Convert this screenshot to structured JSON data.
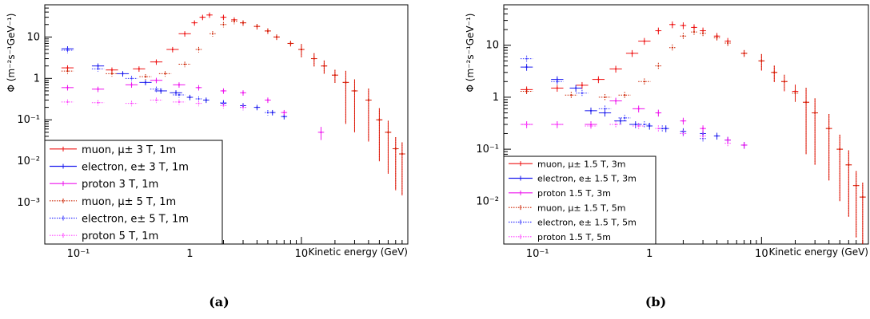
{
  "captions": [
    "(a)",
    "(b)"
  ],
  "chart_data": [
    {
      "type": "scatter",
      "title": "",
      "xlabel": "Kinetic energy (GeV)",
      "ylabel": "Φ (m⁻²s⁻¹GeV⁻¹)",
      "xscale": "log",
      "yscale": "log",
      "xlim": [
        0.05,
        90
      ],
      "ylim": [
        0.0001,
        60
      ],
      "xticks": [
        {
          "v": 0.1,
          "label": "10⁻¹"
        },
        {
          "v": 1,
          "label": "1"
        },
        {
          "v": 10,
          "label": "10"
        }
      ],
      "yticks": [
        {
          "v": 0.001,
          "label": "10⁻³"
        },
        {
          "v": 0.01,
          "label": "10⁻²"
        },
        {
          "v": 0.1,
          "label": "10⁻¹"
        },
        {
          "v": 1,
          "label": "1"
        },
        {
          "v": 10,
          "label": "10"
        }
      ],
      "legend_position": "bottom-left",
      "series": [
        {
          "name": "muon, μ± 3 T, 1m",
          "color": "#ee1111",
          "style": "solid",
          "x": [
            0.08,
            0.2,
            0.35,
            0.5,
            0.7,
            0.9,
            1.1,
            1.3,
            1.5,
            2,
            2.5,
            3,
            4,
            5,
            6,
            8,
            10,
            13,
            16,
            20,
            25,
            30,
            40,
            50,
            60,
            70,
            80
          ],
          "y": [
            1.8,
            1.6,
            1.7,
            2.5,
            5,
            12,
            22,
            30,
            34,
            30,
            26,
            22,
            18,
            14,
            10,
            7,
            5,
            3,
            2,
            1.2,
            0.8,
            0.5,
            0.3,
            0.1,
            0.05,
            0.02,
            0.015
          ]
        },
        {
          "name": "electron, e± 3 T, 1m",
          "color": "#1a1aee",
          "style": "solid",
          "x": [
            0.08,
            0.15,
            0.25,
            0.4,
            0.55,
            0.75,
            1,
            1.4,
            2,
            3,
            4,
            5.5,
            7
          ],
          "y": [
            5.2,
            2.0,
            1.3,
            0.8,
            0.5,
            0.45,
            0.35,
            0.3,
            0.25,
            0.22,
            0.2,
            0.15,
            0.12
          ]
        },
        {
          "name": "proton 3 T, 1m",
          "color": "#ee11ee",
          "style": "solid",
          "x": [
            0.08,
            0.15,
            0.3,
            0.5,
            0.8,
            1.2,
            2,
            3,
            5,
            7,
            15
          ],
          "y": [
            0.6,
            0.55,
            0.7,
            0.9,
            0.7,
            0.6,
            0.5,
            0.45,
            0.3,
            0.15,
            0.05
          ]
        },
        {
          "name": "muon, μ± 5 T, 1m",
          "color": "#cc2200",
          "style": "dotted",
          "x": [
            0.08,
            0.2,
            0.4,
            0.6,
            0.9,
            1.2,
            1.6,
            2,
            2.5,
            3,
            4,
            5,
            6,
            8,
            10,
            13,
            16,
            20,
            25,
            30,
            40,
            50,
            60,
            70,
            80
          ],
          "y": [
            1.5,
            1.3,
            1.1,
            1.3,
            2.2,
            5,
            12,
            20,
            24,
            22,
            18,
            14,
            10,
            7,
            5,
            3,
            2,
            1.2,
            0.8,
            0.5,
            0.3,
            0.1,
            0.05,
            0.02,
            0.015
          ]
        },
        {
          "name": "electron, e± 5 T, 1m",
          "color": "#3333ff",
          "style": "dotted",
          "x": [
            0.08,
            0.15,
            0.3,
            0.5,
            0.8,
            1.2,
            2,
            3,
            5
          ],
          "y": [
            4.8,
            1.7,
            1.0,
            0.55,
            0.4,
            0.32,
            0.26,
            0.2,
            0.15
          ]
        },
        {
          "name": "proton 5 T, 1m",
          "color": "#ff44ff",
          "style": "dotted",
          "x": [
            0.08,
            0.15,
            0.3,
            0.5,
            0.8,
            1.2,
            2,
            3
          ],
          "y": [
            0.27,
            0.26,
            0.25,
            0.3,
            0.27,
            0.25,
            0.22,
            0.2
          ]
        }
      ]
    },
    {
      "type": "scatter",
      "title": "",
      "xlabel": "Kinetic energy (GeV)",
      "ylabel": "Φ (m⁻²s⁻¹GeV⁻¹)",
      "xscale": "log",
      "yscale": "log",
      "xlim": [
        0.05,
        90
      ],
      "ylim": [
        0.0015,
        60
      ],
      "xticks": [
        {
          "v": 0.1,
          "label": "10⁻¹"
        },
        {
          "v": 1,
          "label": "1"
        },
        {
          "v": 10,
          "label": "10"
        }
      ],
      "yticks": [
        {
          "v": 0.01,
          "label": "10⁻²"
        },
        {
          "v": 0.1,
          "label": "10⁻¹"
        },
        {
          "v": 1,
          "label": "1"
        },
        {
          "v": 10,
          "label": "10"
        }
      ],
      "legend_position": "bottom-left",
      "series": [
        {
          "name": "muon, μ± 1.5 T, 3m",
          "color": "#ee1111",
          "style": "solid",
          "x": [
            0.08,
            0.15,
            0.25,
            0.35,
            0.5,
            0.7,
            0.9,
            1.2,
            1.6,
            2,
            2.5,
            3,
            4,
            5,
            7,
            10,
            13,
            16,
            20,
            25,
            30,
            40,
            50,
            60,
            70,
            80
          ],
          "y": [
            1.4,
            1.5,
            1.7,
            2.2,
            3.5,
            7,
            12,
            19,
            25,
            24,
            22,
            19,
            15,
            12,
            7,
            5,
            3,
            2,
            1.3,
            0.8,
            0.5,
            0.25,
            0.1,
            0.05,
            0.02,
            0.012
          ]
        },
        {
          "name": "electron, e± 1.5 T, 3m",
          "color": "#1a1aee",
          "style": "solid",
          "x": [
            0.08,
            0.15,
            0.22,
            0.3,
            0.4,
            0.55,
            0.75,
            1,
            1.4,
            2,
            3,
            4,
            5,
            7
          ],
          "y": [
            3.8,
            2.2,
            1.5,
            0.55,
            0.5,
            0.35,
            0.3,
            0.28,
            0.25,
            0.22,
            0.2,
            0.18,
            0.15,
            0.12
          ]
        },
        {
          "name": "proton 1.5 T, 3m",
          "color": "#ee11ee",
          "style": "solid",
          "x": [
            0.08,
            0.15,
            0.3,
            0.5,
            0.8,
            1.2,
            2,
            3,
            5,
            7
          ],
          "y": [
            0.3,
            0.3,
            0.3,
            0.85,
            0.6,
            0.5,
            0.35,
            0.25,
            0.15,
            0.12
          ]
        },
        {
          "name": "muon, μ± 1.5 T, 5m",
          "color": "#cc2200",
          "style": "dotted",
          "x": [
            0.08,
            0.2,
            0.4,
            0.6,
            0.9,
            1.2,
            1.6,
            2,
            2.5,
            3,
            4,
            5,
            7,
            10,
            13,
            16,
            20,
            25,
            30,
            40,
            50,
            60,
            70,
            80
          ],
          "y": [
            1.3,
            1.1,
            1.0,
            1.1,
            2.0,
            4,
            9,
            15,
            18,
            17,
            14,
            11,
            7,
            5,
            3,
            2,
            1.2,
            0.8,
            0.5,
            0.25,
            0.1,
            0.05,
            0.02,
            0.012
          ]
        },
        {
          "name": "electron, e± 1.5 T, 5m",
          "color": "#3333ff",
          "style": "dotted",
          "x": [
            0.08,
            0.15,
            0.25,
            0.4,
            0.6,
            0.9,
            1.3,
            2,
            3
          ],
          "y": [
            5.5,
            2.0,
            1.2,
            0.6,
            0.4,
            0.3,
            0.25,
            0.2,
            0.16
          ]
        },
        {
          "name": "proton 1.5 T, 5m",
          "color": "#ff44ff",
          "style": "dotted",
          "x": [
            0.08,
            0.15,
            0.3,
            0.5,
            0.8,
            1.2,
            2,
            3,
            5
          ],
          "y": [
            0.3,
            0.3,
            0.28,
            0.3,
            0.28,
            0.25,
            0.2,
            0.18,
            0.13
          ]
        }
      ]
    }
  ]
}
